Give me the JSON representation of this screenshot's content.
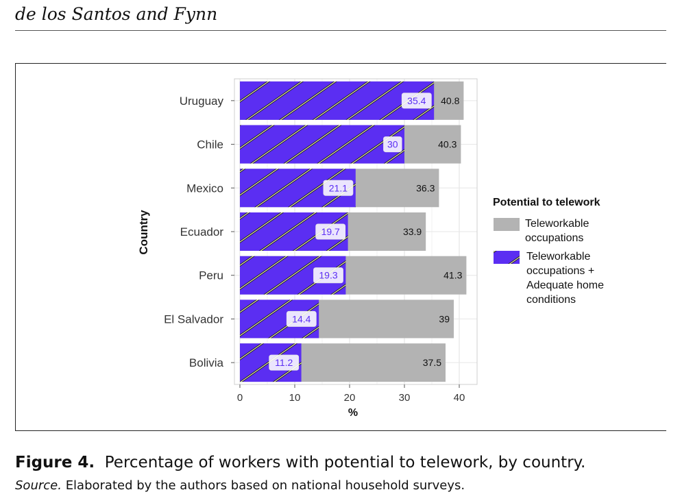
{
  "page": {
    "running_head": "de los Santos and Fynn",
    "caption_label": "Figure 4.",
    "caption_text": "Percentage of workers with potential to telework, by country.",
    "source_label": "Source.",
    "source_text": "Elaborated by the authors based on national household surveys."
  },
  "colors": {
    "teleworkable": "#b3b3b3",
    "adequate": "#5b2ef2",
    "stripe": "#e8e8b0",
    "grid": "#e6e6e6",
    "panel_border": "#cfcfcf"
  },
  "chart_data": {
    "type": "bar",
    "orientation": "horizontal",
    "categories": [
      "Uruguay",
      "Chile",
      "Mexico",
      "Ecuador",
      "Peru",
      "El Salvador",
      "Bolivia"
    ],
    "series": [
      {
        "name": "Teleworkable occupations",
        "values": [
          40.8,
          40.3,
          36.3,
          33.9,
          41.3,
          39,
          37.5
        ]
      },
      {
        "name": "Teleworkable occupations + Adequate home conditions",
        "values": [
          35.4,
          30,
          21.1,
          19.7,
          19.3,
          14.4,
          11.2
        ]
      }
    ],
    "title": "",
    "xlabel": "%",
    "ylabel": "Country",
    "xlim": [
      0,
      43
    ],
    "xticks": [
      0,
      10,
      20,
      30,
      40
    ],
    "legend_title": "Potential to telework",
    "legend_position": "right",
    "grid": true
  }
}
